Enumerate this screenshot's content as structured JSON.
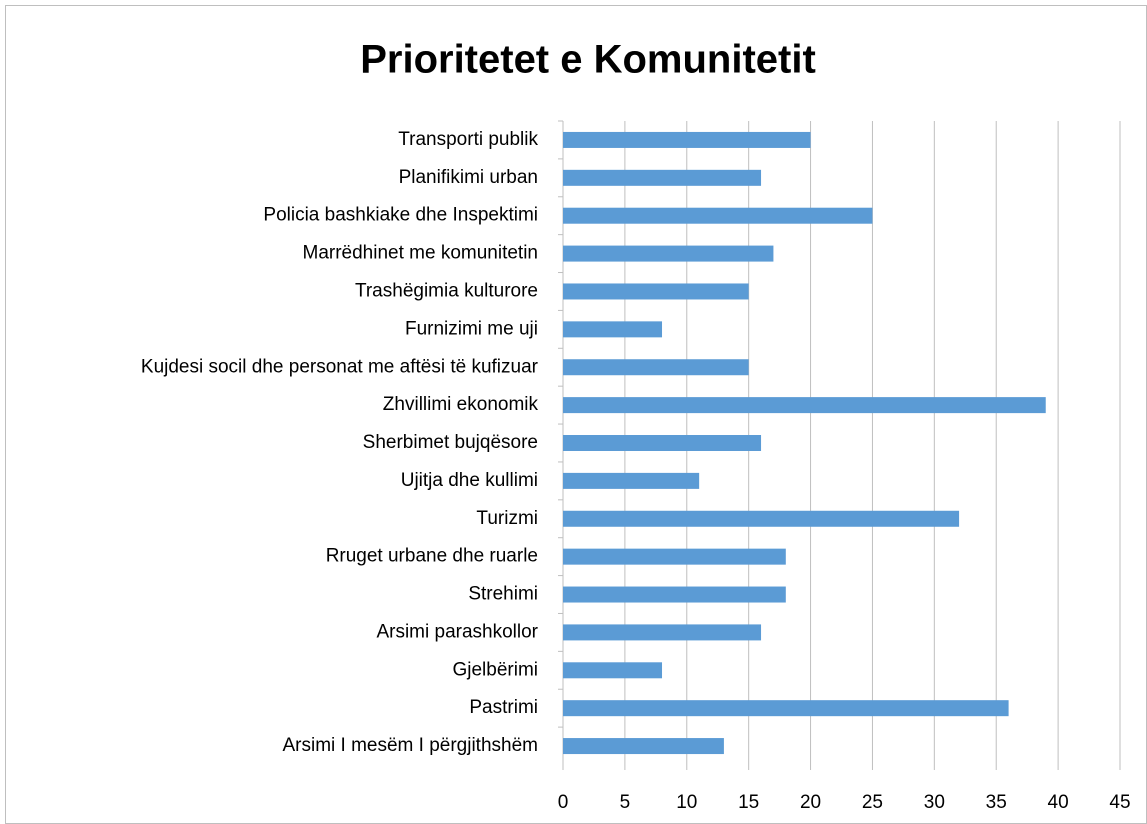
{
  "chart_data": {
    "type": "bar",
    "orientation": "horizontal",
    "title": "Prioritetet e Komunitetit",
    "categories": [
      "Transporti publik",
      "Planifikimi urban",
      "Policia bashkiake dhe Inspektimi",
      "Marrëdhinet me komunitetin",
      "Trashëgimia kulturore",
      "Furnizimi me uji",
      "Kujdesi socil dhe personat me aftësi të kufizuar",
      "Zhvillimi ekonomik",
      "Sherbimet bujqësore",
      "Ujitja dhe kullimi",
      "Turizmi",
      "Rruget urbane dhe ruarle",
      "Strehimi",
      "Arsimi parashkollor",
      "Gjelbërimi",
      "Pastrimi",
      "Arsimi I mesëm I përgjithshëm"
    ],
    "values": [
      20,
      16,
      25,
      17,
      15,
      8,
      15,
      39,
      16,
      11,
      32,
      18,
      18,
      16,
      8,
      36,
      13
    ],
    "color": "#5b9bd5",
    "xlim": [
      0,
      45
    ],
    "xticks": [
      0,
      5,
      10,
      15,
      20,
      25,
      30,
      35,
      40,
      45
    ],
    "grid": true
  }
}
